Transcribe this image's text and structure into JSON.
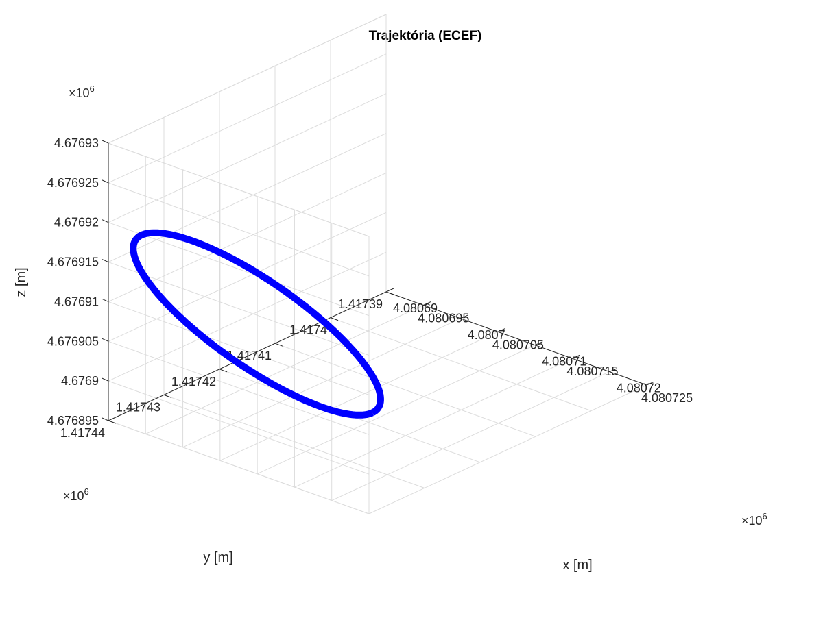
{
  "chart_data": {
    "type": "line3d",
    "title": "Trajektória (ECEF)",
    "xlabel": "x [m]",
    "ylabel": "y [m]",
    "zlabel": "z [m]",
    "x_exponent_label": "×10",
    "y_exponent_label": "×10",
    "z_exponent_label": "×10",
    "exponent_power": "6",
    "x_ticks": [
      "4.08069",
      "4.080695",
      "4.0807",
      "4.080705",
      "4.08071",
      "4.080715",
      "4.08072",
      "4.080725"
    ],
    "y_ticks": [
      "1.41739",
      "1.4174",
      "1.41741",
      "1.41742",
      "1.41743",
      "1.41744"
    ],
    "z_ticks": [
      "4.676895",
      "4.6769",
      "4.676905",
      "4.67691",
      "4.676915",
      "4.67692",
      "4.676925",
      "4.67693"
    ],
    "xlim": [
      4080690,
      4080725
    ],
    "ylim": [
      1417390,
      1417440
    ],
    "zlim": [
      4676895,
      4676930
    ],
    "grid": true,
    "series": [
      {
        "color": "#0000ff",
        "shape": "ellipse",
        "center": {
          "x": 4080701,
          "y": 1417428,
          "z": 4676907
        },
        "approx_extent": {
          "x": 15.5,
          "y": 8,
          "z": 6
        }
      }
    ]
  }
}
